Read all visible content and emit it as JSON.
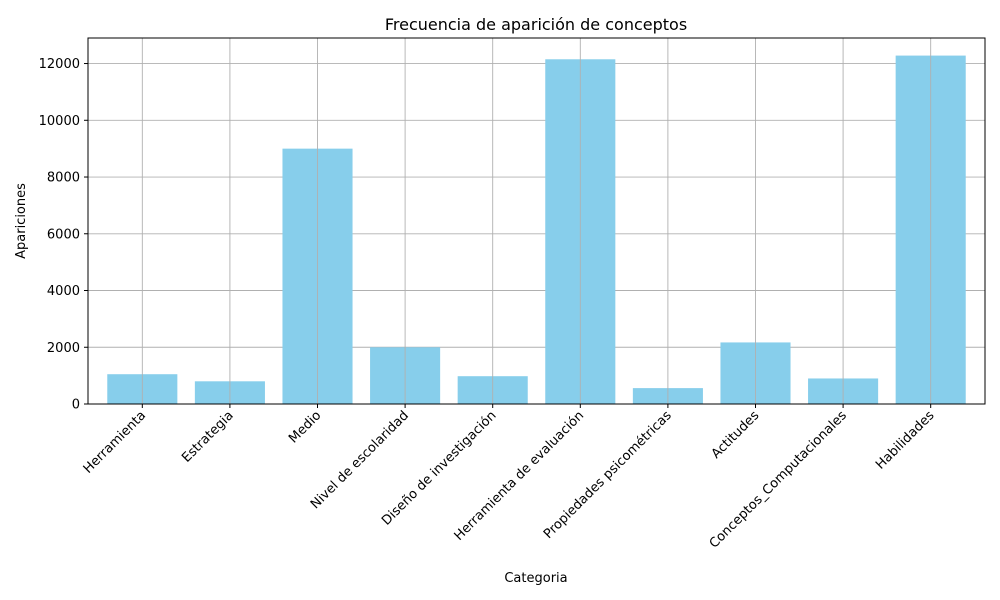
{
  "chart_data": {
    "type": "bar",
    "title": "Frecuencia de aparición de conceptos",
    "xlabel": "Categoria",
    "ylabel": "Apariciones",
    "categories": [
      "Herramienta",
      "Estrategia",
      "Medio",
      "Nivel de escolaridad",
      "Diseño de investigación",
      "Herramienta de evaluación",
      "Propiedades psicométricas",
      "Actitudes",
      "Conceptos_Computacionales",
      "Habilidades"
    ],
    "values": [
      1050,
      800,
      9000,
      2000,
      980,
      12150,
      560,
      2170,
      900,
      12280
    ],
    "ylim": [
      0,
      12900
    ],
    "yticks": [
      0,
      2000,
      4000,
      6000,
      8000,
      10000,
      12000
    ],
    "grid": true,
    "bar_color": "#87ceeb"
  }
}
